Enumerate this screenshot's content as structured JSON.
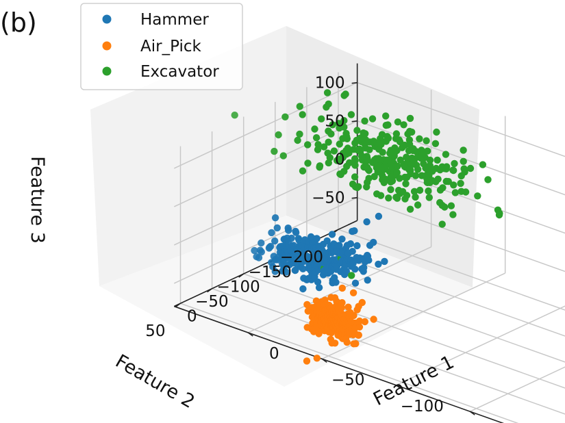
{
  "panel_label": "(b)",
  "chart_data": {
    "type": "scatter",
    "projection": "3d",
    "grid": true,
    "legend_position": "top-left",
    "xlabel": "Feature 1",
    "ylabel": "Feature 2",
    "zlabel": "Feature 3",
    "xlim": [
      -200,
      50
    ],
    "ylim": [
      -230,
      60
    ],
    "zlim": [
      -80,
      125
    ],
    "xticks": [
      -150,
      -100,
      -50,
      0
    ],
    "yticks": [
      -200,
      -150,
      -100,
      -50,
      0,
      50
    ],
    "zticks": [
      -50,
      0,
      50,
      100
    ],
    "xtick_labels": [
      "−150",
      "−100",
      "−50",
      "0"
    ],
    "ytick_labels": [
      "−200",
      "−150",
      "−100",
      "−50",
      "0",
      "50"
    ],
    "ztick_labels": [
      "−50",
      "0",
      "50",
      "100"
    ],
    "series": [
      {
        "name": "Hammer",
        "color": "#1f77b4",
        "cluster": {
          "x_mean": 10,
          "y_mean": -70,
          "z_mean": -40,
          "x_sd": 14,
          "y_sd": 22,
          "z_sd": 7,
          "n": 300
        },
        "points": [
          [
            5,
            -120,
            -20
          ],
          [
            -5,
            -135,
            0
          ],
          [
            0,
            -128,
            -8
          ],
          [
            -40,
            5,
            20
          ],
          [
            -30,
            -35,
            10
          ],
          [
            20,
            -120,
            -35
          ]
        ]
      },
      {
        "name": "Air_Pick",
        "color": "#ff7f0e",
        "cluster": {
          "x_mean": -45,
          "y_mean": 30,
          "z_mean": -45,
          "x_sd": 7,
          "y_sd": 6,
          "z_sd": 10,
          "n": 300
        },
        "points": [
          [
            -38,
            40,
            -95
          ],
          [
            -32,
            42,
            -102
          ],
          [
            -60,
            20,
            -15
          ],
          [
            -55,
            22,
            -5
          ],
          [
            -50,
            28,
            0
          ]
        ]
      },
      {
        "name": "Excavator",
        "color": "#2ca02c",
        "cluster": {
          "x_mean": 0,
          "y_mean": -160,
          "z_mean": 60,
          "x_sd": 28,
          "y_sd": 22,
          "z_sd": 20,
          "n": 300
        },
        "points": [
          [
            -110,
            -80,
            95
          ],
          [
            -50,
            30,
            40
          ],
          [
            -40,
            -10,
            -5
          ],
          [
            -30,
            10,
            5
          ],
          [
            -80,
            -60,
            70
          ],
          [
            10,
            -200,
            30
          ]
        ]
      }
    ]
  }
}
